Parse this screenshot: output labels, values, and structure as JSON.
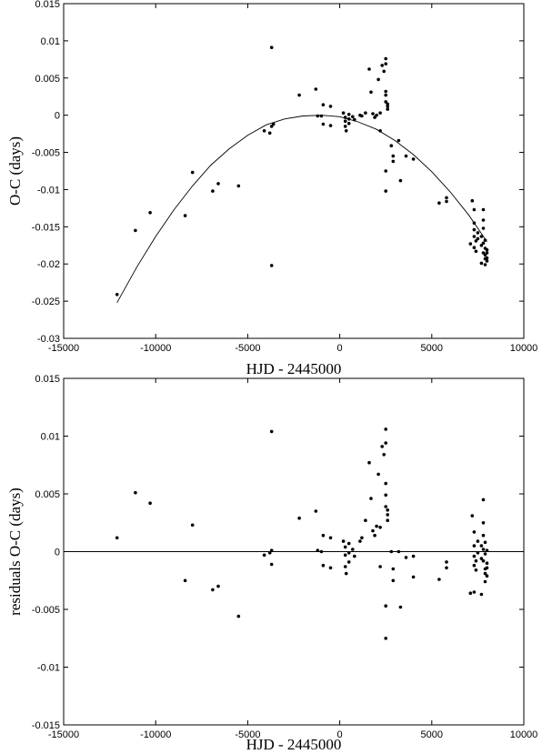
{
  "chart_data": [
    {
      "type": "scatter",
      "xlabel": "HJD - 2445000",
      "ylabel": "O-C (days)",
      "xlim": [
        -15000,
        10000
      ],
      "ylim": [
        -0.03,
        0.015
      ],
      "xticks": [
        "-15000",
        "-10000",
        "-5000",
        "0",
        "5000",
        "10000"
      ],
      "yticks": [
        "0.015",
        "0.01",
        "0.005",
        "0",
        "-0.005",
        "-0.01",
        "-0.015",
        "-0.02",
        "-0.025",
        "-0.03"
      ],
      "grid": false,
      "fit_curve": {
        "type": "quadratic",
        "points": [
          [
            -12100,
            -0.0252
          ],
          [
            -11000,
            -0.0203
          ],
          [
            -10000,
            -0.0163
          ],
          [
            -9000,
            -0.0127
          ],
          [
            -8000,
            -0.0095
          ],
          [
            -7000,
            -0.0067
          ],
          [
            -6000,
            -0.0045
          ],
          [
            -5000,
            -0.0027
          ],
          [
            -4000,
            -0.0013
          ],
          [
            -3000,
            -0.0005
          ],
          [
            -2000,
            -0.0001
          ],
          [
            -1000,
            0.0
          ],
          [
            0,
            -0.0002
          ],
          [
            1000,
            -0.0009
          ],
          [
            2000,
            -0.0019
          ],
          [
            3000,
            -0.0034
          ],
          [
            4000,
            -0.0053
          ],
          [
            5000,
            -0.0076
          ],
          [
            6000,
            -0.0103
          ],
          [
            7000,
            -0.0134
          ],
          [
            8000,
            -0.017
          ]
        ]
      },
      "points": [
        [
          -12100,
          -0.0241
        ],
        [
          -11100,
          -0.0155
        ],
        [
          -10300,
          -0.0131
        ],
        [
          -8400,
          -0.0135
        ],
        [
          -8000,
          -0.0077
        ],
        [
          -6900,
          -0.0102
        ],
        [
          -6600,
          -0.0092
        ],
        [
          -5500,
          -0.0095
        ],
        [
          -4100,
          -0.0021
        ],
        [
          -3800,
          -0.0024
        ],
        [
          -3700,
          0.0091
        ],
        [
          -3700,
          -0.0202
        ],
        [
          -3700,
          -0.0015
        ],
        [
          -3600,
          -0.0012
        ],
        [
          -2200,
          0.0027
        ],
        [
          -1300,
          0.0035
        ],
        [
          -1200,
          -0.0001
        ],
        [
          -1000,
          -0.0001
        ],
        [
          -900,
          0.0014
        ],
        [
          -900,
          -0.0012
        ],
        [
          -500,
          0.0012
        ],
        [
          -500,
          -0.0014
        ],
        [
          200,
          0.0003
        ],
        [
          300,
          -0.0003
        ],
        [
          300,
          -0.0008
        ],
        [
          300,
          -0.0015
        ],
        [
          350,
          -0.0021
        ],
        [
          500,
          0.0001
        ],
        [
          500,
          -0.0005
        ],
        [
          500,
          -0.0011
        ],
        [
          700,
          -0.0002
        ],
        [
          800,
          -0.0006
        ],
        [
          1100,
          0.0
        ],
        [
          1200,
          -0.0001
        ],
        [
          1400,
          0.0003
        ],
        [
          1600,
          0.0062
        ],
        [
          1700,
          0.0031
        ],
        [
          1800,
          0.0002
        ],
        [
          1900,
          -0.0003
        ],
        [
          2000,
          0.0
        ],
        [
          2100,
          0.0048
        ],
        [
          2200,
          0.0003
        ],
        [
          2200,
          -0.0021
        ],
        [
          2300,
          0.0067
        ],
        [
          2400,
          0.0059
        ],
        [
          2500,
          0.0076
        ],
        [
          2500,
          0.0069
        ],
        [
          2500,
          0.0032
        ],
        [
          2500,
          0.0027
        ],
        [
          2500,
          0.0018
        ],
        [
          2600,
          0.0015
        ],
        [
          2600,
          0.0012
        ],
        [
          2600,
          0.0008
        ],
        [
          2500,
          -0.0075
        ],
        [
          2500,
          -0.0102
        ],
        [
          2800,
          -0.0041
        ],
        [
          2900,
          -0.0055
        ],
        [
          2900,
          -0.0062
        ],
        [
          3200,
          -0.0034
        ],
        [
          3300,
          -0.0088
        ],
        [
          3600,
          -0.0055
        ],
        [
          4000,
          -0.0059
        ],
        [
          5400,
          -0.0118
        ],
        [
          5800,
          -0.0111
        ],
        [
          5800,
          -0.0116
        ],
        [
          7100,
          -0.0173
        ],
        [
          7200,
          -0.0115
        ],
        [
          7300,
          -0.0127
        ],
        [
          7300,
          -0.0145
        ],
        [
          7300,
          -0.0154
        ],
        [
          7300,
          -0.0163
        ],
        [
          7300,
          -0.0178
        ],
        [
          7400,
          -0.0169
        ],
        [
          7400,
          -0.0183
        ],
        [
          7500,
          -0.0158
        ],
        [
          7500,
          -0.0166
        ],
        [
          7700,
          -0.0175
        ],
        [
          7700,
          -0.0199
        ],
        [
          7700,
          -0.0163
        ],
        [
          7800,
          -0.0127
        ],
        [
          7800,
          -0.0141
        ],
        [
          7800,
          -0.0152
        ],
        [
          7800,
          -0.0172
        ],
        [
          7800,
          -0.0185
        ],
        [
          7900,
          -0.0179
        ],
        [
          7900,
          -0.0168
        ],
        [
          7900,
          -0.0188
        ],
        [
          7900,
          -0.0193
        ],
        [
          7900,
          -0.0201
        ],
        [
          8000,
          -0.0181
        ],
        [
          8000,
          -0.0185
        ],
        [
          8000,
          -0.0192
        ],
        [
          8000,
          -0.0196
        ]
      ]
    },
    {
      "type": "scatter",
      "xlabel": "HJD - 2445000",
      "ylabel": "residuals O-C (days)",
      "xlim": [
        -15000,
        10000
      ],
      "ylim": [
        -0.015,
        0.015
      ],
      "xticks": [
        "-15000",
        "-10000",
        "-5000",
        "0",
        "5000",
        "10000"
      ],
      "yticks": [
        "0.015",
        "0.01",
        "0.005",
        "0",
        "-0.005",
        "-0.01",
        "-0.015"
      ],
      "grid": false,
      "reference_line_y": 0,
      "points": [
        [
          -12100,
          0.0012
        ],
        [
          -11100,
          0.0051
        ],
        [
          -10300,
          0.0042
        ],
        [
          -8400,
          -0.0025
        ],
        [
          -8000,
          0.0023
        ],
        [
          -6900,
          -0.0033
        ],
        [
          -6600,
          -0.003
        ],
        [
          -5500,
          -0.0056
        ],
        [
          -4100,
          -0.0003
        ],
        [
          -3800,
          -0.0001
        ],
        [
          -3700,
          0.0104
        ],
        [
          -3700,
          0.0001
        ],
        [
          -3700,
          -0.0011
        ],
        [
          -2200,
          0.0029
        ],
        [
          -1300,
          0.0035
        ],
        [
          -1200,
          0.0001
        ],
        [
          -1000,
          0.0
        ],
        [
          -900,
          0.0014
        ],
        [
          -900,
          -0.0012
        ],
        [
          -500,
          0.0012
        ],
        [
          -500,
          -0.0014
        ],
        [
          200,
          0.0009
        ],
        [
          300,
          0.0004
        ],
        [
          300,
          -0.0003
        ],
        [
          300,
          -0.0013
        ],
        [
          350,
          -0.0019
        ],
        [
          500,
          0.0007
        ],
        [
          500,
          -0.0001
        ],
        [
          500,
          -0.0009
        ],
        [
          700,
          0.0002
        ],
        [
          800,
          -0.0004
        ],
        [
          1100,
          0.0009
        ],
        [
          1200,
          0.0012
        ],
        [
          1400,
          0.0027
        ],
        [
          1600,
          0.0077
        ],
        [
          1700,
          0.0046
        ],
        [
          1800,
          0.0018
        ],
        [
          1900,
          0.0014
        ],
        [
          2000,
          0.0022
        ],
        [
          2100,
          0.0067
        ],
        [
          2200,
          0.0021
        ],
        [
          2200,
          -0.0013
        ],
        [
          2300,
          0.0091
        ],
        [
          2400,
          0.0084
        ],
        [
          2500,
          0.0106
        ],
        [
          2500,
          0.0094
        ],
        [
          2500,
          0.0059
        ],
        [
          2500,
          0.0049
        ],
        [
          2500,
          0.0039
        ],
        [
          2600,
          0.0036
        ],
        [
          2600,
          0.0032
        ],
        [
          2600,
          0.0027
        ],
        [
          2500,
          -0.0047
        ],
        [
          2500,
          -0.0075
        ],
        [
          2800,
          0.0
        ],
        [
          2900,
          -0.0025
        ],
        [
          2900,
          -0.0015
        ],
        [
          3200,
          0.0
        ],
        [
          3300,
          -0.0048
        ],
        [
          3600,
          -0.0005
        ],
        [
          4000,
          -0.0022
        ],
        [
          4000,
          -0.0004
        ],
        [
          5400,
          -0.0024
        ],
        [
          5800,
          -0.0009
        ],
        [
          5800,
          -0.0014
        ],
        [
          7100,
          -0.0036
        ],
        [
          7200,
          0.0031
        ],
        [
          7300,
          0.0017
        ],
        [
          7300,
          0.0005
        ],
        [
          7300,
          -0.0004
        ],
        [
          7300,
          -0.0012
        ],
        [
          7300,
          -0.0035
        ],
        [
          7400,
          -0.0008
        ],
        [
          7400,
          -0.0016
        ],
        [
          7500,
          0.0009
        ],
        [
          7500,
          -0.0001
        ],
        [
          7700,
          -0.0006
        ],
        [
          7700,
          -0.0037
        ],
        [
          7700,
          0.0005
        ],
        [
          7800,
          0.0045
        ],
        [
          7800,
          0.0025
        ],
        [
          7800,
          0.0014
        ],
        [
          7800,
          0.0002
        ],
        [
          7800,
          -0.0008
        ],
        [
          7900,
          -0.0002
        ],
        [
          7900,
          0.0008
        ],
        [
          7900,
          -0.0015
        ],
        [
          7900,
          -0.0019
        ],
        [
          7900,
          -0.0026
        ],
        [
          8000,
          -0.001
        ],
        [
          8000,
          -0.0014
        ],
        [
          8000,
          -0.0021
        ],
        [
          8000,
          0.0001
        ]
      ]
    }
  ]
}
